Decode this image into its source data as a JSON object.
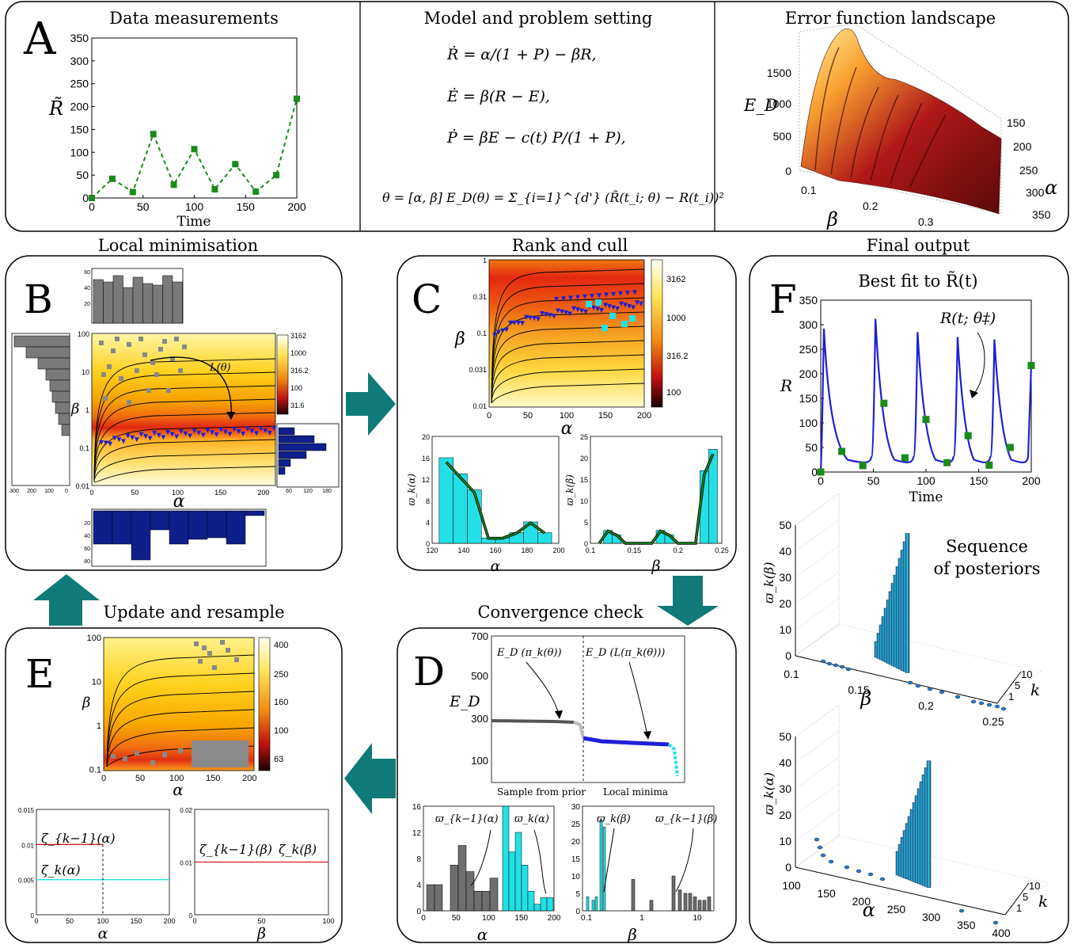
{
  "panel_a": {
    "letter": "A",
    "data_title": "Data measurements",
    "model_title": "Model and problem setting",
    "landscape_title": "Error function landscape",
    "time_label": "Time",
    "y_label": "R̃",
    "eq1": "Ṙ = α/(1 + P) − βR,",
    "eq2": "Ė = β(R − E),",
    "eq3": "Ṗ = βE − c(t) P/(1 + P),",
    "eq4": "θ = [α, β]   E_D(θ) = Σ_{i=1}^{d'} (R̃(t_i; θ) − R(t_i))²",
    "landscape_zlabel": "E_D",
    "landscape_zticks": [
      "1500",
      "1000",
      "500",
      "0"
    ],
    "landscape_beta_ticks": [
      "0.1",
      "0.2",
      "0.3"
    ],
    "landscape_alpha_ticks": [
      "150",
      "200",
      "250",
      "300",
      "350"
    ],
    "landscape_alpha_label": "α",
    "landscape_beta_label": "β"
  },
  "panel_b": {
    "letter": "B",
    "title": "Local minimisation",
    "curve_label": "L(θ)",
    "x_label": "α",
    "y_label": "β",
    "x_ticks": [
      "0",
      "50",
      "100",
      "150",
      "200"
    ],
    "y_ticks": [
      "100",
      "10",
      "1",
      "0.1",
      "0.01"
    ],
    "colorbar_ticks": [
      "3162",
      "1000",
      "316.2",
      "100",
      "31.6"
    ],
    "top_hist_ticks": [
      "60",
      "40",
      "20"
    ],
    "bottom_hist_ticks": [
      "20",
      "40",
      "60",
      "80"
    ],
    "left_hist_ticks": [
      "300",
      "200",
      "100",
      "0"
    ],
    "right_hist_ticks": [
      "60",
      "120",
      "180"
    ]
  },
  "panel_c": {
    "letter": "C",
    "title": "Rank and cull",
    "x_label": "α",
    "y_label": "β",
    "x_ticks": [
      "0",
      "50",
      "100",
      "150",
      "200"
    ],
    "y_ticks": [
      "1",
      "0.31",
      "0.1",
      "0.031",
      "0.01"
    ],
    "colorbar_ticks": [
      "3162",
      "1000",
      "316.2",
      "100"
    ],
    "hist_alpha_label": "α",
    "hist_alpha_ylabel": "ϖ_k(α)",
    "hist_alpha_xticks": [
      "120",
      "140",
      "160",
      "180",
      "200"
    ],
    "hist_alpha_yticks": [
      "20",
      "16",
      "12",
      "8",
      "4",
      "0"
    ],
    "hist_beta_label": "β",
    "hist_beta_ylabel": "ϖ_k(β)",
    "hist_beta_xticks": [
      "0.1",
      "0.15",
      "0.2",
      "0.25"
    ],
    "hist_beta_yticks": [
      "25",
      "20",
      "15",
      "10",
      "5",
      "0"
    ]
  },
  "panel_d": {
    "letter": "D",
    "title": "Convergence check",
    "y_label": "E_D",
    "y_ticks": [
      "700",
      "500",
      "300",
      "100"
    ],
    "annot_prior": "E_D (π_k(θ))",
    "annot_local": "E_D (L(π_k(θ)))",
    "x_left_label": "Sample from prior",
    "x_right_label": "Local minima",
    "hist_alpha_yticks": [
      "16",
      "12",
      "8",
      "4",
      "0"
    ],
    "hist_alpha_xticks": [
      "0",
      "50",
      "100",
      "150",
      "200"
    ],
    "hist_alpha_label": "α",
    "hist_alpha_annot_prev": "ϖ_{k−1}(α)",
    "hist_alpha_annot_cur": "ϖ_k(α)",
    "hist_beta_yticks": [
      "30",
      "25",
      "20",
      "15",
      "10",
      "5",
      "0"
    ],
    "hist_beta_xticks": [
      "0.1",
      "1",
      "10"
    ],
    "hist_beta_label": "β",
    "hist_beta_annot_cur": "ϖ_k(β)",
    "hist_beta_annot_prev": "ϖ_{k−1}(β)"
  },
  "panel_e": {
    "letter": "E",
    "title": "Update and resample",
    "x_label": "α",
    "y_label": "β",
    "x_ticks": [
      "0",
      "50",
      "100",
      "150",
      "200"
    ],
    "y_ticks": [
      "100",
      "10",
      "1",
      "0.1"
    ],
    "colorbar_ticks": [
      "400",
      "250",
      "160",
      "100",
      "63"
    ],
    "prior_alpha_yticks": [
      "0.015",
      "0.01",
      "0.005",
      "0"
    ],
    "prior_alpha_xticks": [
      "0",
      "50",
      "100",
      "150",
      "200"
    ],
    "prior_alpha_label": "α",
    "prior_alpha_prev": "ζ_{k−1}(α)",
    "prior_alpha_cur": "ζ_k(α)",
    "prior_beta_yticks": [
      "0.02",
      "0.01",
      "0"
    ],
    "prior_beta_xticks": [
      "0",
      "50",
      "100"
    ],
    "prior_beta_label": "β",
    "prior_beta_prev": "ζ_{k−1}(β)",
    "prior_beta_cur": "ζ_k(β)"
  },
  "panel_f": {
    "letter": "F",
    "title": "Final output",
    "subtitle": "Best fit to R̃(t)",
    "curve_label": "R(t; θ‡)",
    "y_label": "R",
    "x_label": "Time",
    "seq_label_1": "Sequence",
    "seq_label_2": "of posteriors",
    "beta_zlabel": "ϖ_k(β)",
    "beta_xlabel": "β",
    "beta_zticks": [
      "50",
      "40",
      "30",
      "20",
      "10",
      "0"
    ],
    "beta_xticks": [
      "0.1",
      "0.15",
      "0.2",
      "0.25"
    ],
    "alpha_zlabel": "ϖ_k(α)",
    "alpha_xlabel": "α",
    "alpha_zticks": [
      "50",
      "40",
      "30",
      "20",
      "10",
      "0"
    ],
    "alpha_xticks": [
      "100",
      "150",
      "200",
      "250",
      "300",
      "350",
      "400"
    ],
    "k_label": "k",
    "k_ticks": [
      "10",
      "5",
      "1"
    ]
  },
  "colors": {
    "data_green": "#1a8a1a",
    "fit_blue": "#1f1fd6",
    "teal_arrow": "#0f7a78",
    "cyan": "#22e0e6",
    "gray_hist": "#7a7a7a",
    "navy_hist": "#0f1f8a"
  },
  "chart_data": [
    {
      "type": "scatter",
      "title": "Data measurements",
      "xlabel": "Time",
      "ylabel": "R̃",
      "x": [
        0,
        20,
        40,
        60,
        80,
        100,
        120,
        140,
        160,
        180,
        200
      ],
      "y": [
        0,
        42,
        13,
        140,
        29,
        107,
        19,
        74,
        14,
        50,
        217
      ],
      "xlim": [
        0,
        200
      ],
      "ylim": [
        0,
        350
      ],
      "x_ticks": [
        "0",
        "50",
        "100",
        "150",
        "200"
      ],
      "y_ticks": [
        "0",
        "50",
        "100",
        "150",
        "200",
        "250",
        "300",
        "350"
      ]
    },
    {
      "type": "line",
      "title": "Best fit to R̃(t)",
      "xlabel": "Time",
      "ylabel": "R",
      "xlim": [
        0,
        200
      ],
      "ylim": [
        0,
        350
      ],
      "x_ticks": [
        "0",
        "50",
        "100",
        "150",
        "200"
      ],
      "y_ticks": [
        "0",
        "50",
        "100",
        "150",
        "200",
        "250",
        "300",
        "350"
      ],
      "peaks_x": [
        3,
        52,
        92,
        130,
        165
      ],
      "peaks_y": [
        292,
        312,
        285,
        275,
        270
      ],
      "data_x": [
        0,
        20,
        40,
        60,
        80,
        100,
        120,
        140,
        160,
        180,
        200
      ],
      "data_y": [
        0,
        42,
        13,
        140,
        29,
        107,
        19,
        74,
        14,
        50,
        217
      ]
    },
    {
      "type": "bar",
      "title": "",
      "xlabel": "α",
      "ylabel": "ϖ_k(α)",
      "categories": [
        "120",
        "130",
        "140",
        "150",
        "160",
        "170",
        "180",
        "190"
      ],
      "values": [
        16,
        13,
        10,
        1,
        1,
        2,
        4,
        2
      ],
      "ylim": [
        0,
        20
      ]
    },
    {
      "type": "bar",
      "title": "",
      "xlabel": "β",
      "ylabel": "ϖ_k(β)",
      "categories": [
        "0.11",
        "0.12",
        "0.13",
        "0.14",
        "0.15",
        "0.16",
        "0.17",
        "0.18",
        "0.19",
        "0.20",
        "0.21",
        "0.22",
        "0.23",
        "0.24"
      ],
      "values": [
        0,
        3,
        2,
        0,
        0,
        0,
        0,
        3,
        2,
        0,
        0,
        0,
        17,
        22
      ],
      "ylim": [
        0,
        25
      ]
    }
  ]
}
